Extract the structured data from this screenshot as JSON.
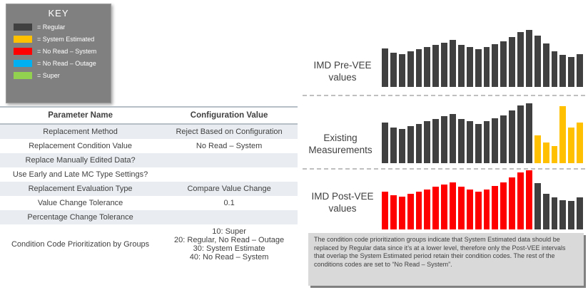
{
  "key": {
    "title": "KEY",
    "items": [
      {
        "label": "= Regular",
        "color": "#404040"
      },
      {
        "label": "= System Estimated",
        "color": "#FFC000"
      },
      {
        "label": "= No Read – System",
        "color": "#FF0000"
      },
      {
        "label": "= No Read – Outage",
        "color": "#00B0F0"
      },
      {
        "label": "= Super",
        "color": "#92D050"
      }
    ]
  },
  "table": {
    "headers": [
      "Parameter Name",
      "Configuration Value"
    ],
    "rows": [
      {
        "parameter": "Replacement Method",
        "value": "Reject Based on Configuration"
      },
      {
        "parameter": "Replacement Condition Value",
        "value": "No Read – System"
      },
      {
        "parameter": "Replace Manually Edited Data?",
        "value": ""
      },
      {
        "parameter": "Use Early and Late MC Type Settings?",
        "value": ""
      },
      {
        "parameter": "Replacement Evaluation Type",
        "value": "Compare Value Change"
      },
      {
        "parameter": "Value Change Tolerance",
        "value": "0.1"
      },
      {
        "parameter": "Percentage Change Tolerance",
        "value": ""
      },
      {
        "parameter": "Condition Code Prioritization by Groups",
        "value": "10: Super\n20: Regular, No Read – Outage\n30: System Estimate\n40: No Read – System"
      }
    ]
  },
  "chart_data": [
    {
      "type": "bar",
      "title": "IMD Pre-VEE values",
      "legend_colors": {
        "Regular": "#404040"
      },
      "values": [
        68,
        60,
        57,
        62,
        66,
        70,
        74,
        78,
        82,
        74,
        70,
        66,
        70,
        75,
        80,
        88,
        96,
        100,
        90,
        76,
        62,
        56,
        53,
        58
      ],
      "colors": [
        "#404040",
        "#404040",
        "#404040",
        "#404040",
        "#404040",
        "#404040",
        "#404040",
        "#404040",
        "#404040",
        "#404040",
        "#404040",
        "#404040",
        "#404040",
        "#404040",
        "#404040",
        "#404040",
        "#404040",
        "#404040",
        "#404040",
        "#404040",
        "#404040",
        "#404040",
        "#404040",
        "#404040"
      ],
      "ylim": [
        0,
        100
      ],
      "grid": false,
      "axis_labels": false
    },
    {
      "type": "bar",
      "title": "Existing Measurements",
      "legend_colors": {
        "Regular": "#404040",
        "System Estimated": "#FFC000"
      },
      "values": [
        68,
        60,
        57,
        62,
        66,
        70,
        74,
        78,
        82,
        74,
        70,
        66,
        70,
        75,
        80,
        88,
        96,
        100,
        46,
        35,
        28,
        95,
        60,
        68
      ],
      "colors": [
        "#404040",
        "#404040",
        "#404040",
        "#404040",
        "#404040",
        "#404040",
        "#404040",
        "#404040",
        "#404040",
        "#404040",
        "#404040",
        "#404040",
        "#404040",
        "#404040",
        "#404040",
        "#404040",
        "#404040",
        "#404040",
        "#FFC000",
        "#FFC000",
        "#FFC000",
        "#FFC000",
        "#FFC000",
        "#FFC000"
      ],
      "ylim": [
        0,
        100
      ],
      "grid": false,
      "axis_labels": false
    },
    {
      "type": "bar",
      "title": "IMD Post-VEE values",
      "legend_colors": {
        "No Read – System": "#FF0000",
        "Regular": "#404040"
      },
      "values": [
        64,
        58,
        55,
        60,
        64,
        68,
        72,
        76,
        80,
        72,
        68,
        64,
        68,
        74,
        80,
        88,
        96,
        100,
        78,
        60,
        54,
        50,
        48,
        54
      ],
      "colors": [
        "#FF0000",
        "#FF0000",
        "#FF0000",
        "#FF0000",
        "#FF0000",
        "#FF0000",
        "#FF0000",
        "#FF0000",
        "#FF0000",
        "#FF0000",
        "#FF0000",
        "#FF0000",
        "#FF0000",
        "#FF0000",
        "#FF0000",
        "#FF0000",
        "#FF0000",
        "#FF0000",
        "#404040",
        "#404040",
        "#404040",
        "#404040",
        "#404040",
        "#404040"
      ],
      "ylim": [
        0,
        100
      ],
      "grid": false,
      "axis_labels": false
    }
  ],
  "callout": {
    "text": "The condition code prioritization groups indicate that System Estimated data should be replaced by Regular data since it’s at a lower level, therefore only the Post-VEE intervals that overlap the System Estimated period retain their condition codes.  The rest of the conditions codes are set to “No Read – System”."
  }
}
